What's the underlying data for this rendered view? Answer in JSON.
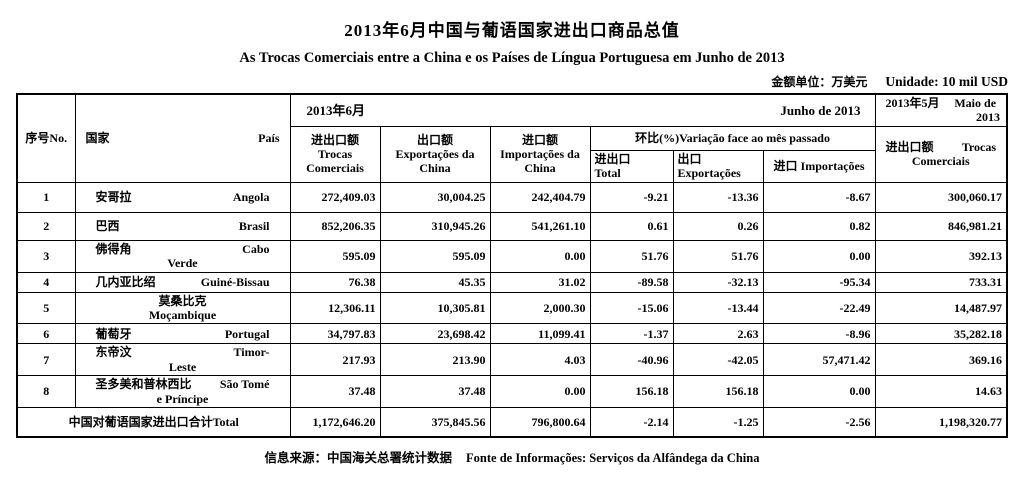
{
  "title_cn": "2013年6月中国与葡语国家进出口商品总值",
  "subtitle_pt": "As Trocas Comerciais entre a China e os Países de Língua Portuguesa em Junho de 2013",
  "unit": {
    "cn": "金额单位：万美元",
    "pt": "Unidade: 10 mil USD"
  },
  "header": {
    "no": "序号No.",
    "country_cn": "国家",
    "country_pt": "País",
    "june_cn": "2013年6月",
    "june_pt": "Junho de 2013",
    "may_cn": "2013年5月",
    "may_pt_line1": "Maio de",
    "may_pt_line2": "2013",
    "col_trocas": "进出口额 Trocas Comerciais",
    "col_exportacoes": "出口额 Exportações da China",
    "col_importacoes": "进口额 Importações da China",
    "variation_span": "环比(%)Variação face ao mês passado",
    "var_total_cn": "进出口",
    "var_total_pt": "Total",
    "var_exp_cn": "出口",
    "var_exp_pt": "Exportações",
    "var_imp_cn": "进口",
    "var_imp_pt": "Importações",
    "may_col_trocas": "进出口额 Trocas Comerciais"
  },
  "chart_data": {
    "type": "table",
    "title": "As Trocas Comerciais entre a China e os Países de Língua Portuguesa em Junho de 2013",
    "columns": [
      "No.",
      "País",
      "Trocas Comerciais 2013-06",
      "Exportações da China",
      "Importações da China",
      "Variação % Total",
      "Variação % Exportações",
      "Variação % Importações",
      "Trocas Comerciais Maio 2013"
    ],
    "rows": [
      [
        "1",
        "Angola",
        272409.03,
        30004.25,
        242404.79,
        -9.21,
        -13.36,
        -8.67,
        300060.17
      ],
      [
        "2",
        "Brasil",
        852206.35,
        310945.26,
        541261.1,
        0.61,
        0.26,
        0.82,
        846981.21
      ],
      [
        "3",
        "Cabo Verde",
        595.09,
        595.09,
        0.0,
        51.76,
        51.76,
        0.0,
        392.13
      ],
      [
        "4",
        "Guiné-Bissau",
        76.38,
        45.35,
        31.02,
        -89.58,
        -32.13,
        -95.34,
        733.31
      ],
      [
        "5",
        "Moçambique",
        12306.11,
        10305.81,
        2000.3,
        -15.06,
        -13.44,
        -22.49,
        14487.97
      ],
      [
        "6",
        "Portugal",
        34797.83,
        23698.42,
        11099.41,
        -1.37,
        2.63,
        -8.96,
        35282.18
      ],
      [
        "7",
        "Timor-Leste",
        217.93,
        213.9,
        4.03,
        -40.96,
        -42.05,
        57471.42,
        369.16
      ],
      [
        "8",
        "São Tomé e Príncipe",
        37.48,
        37.48,
        0.0,
        156.18,
        156.18,
        0.0,
        14.63
      ],
      [
        "Total",
        "中国对葡语国家进出口合计",
        1172646.2,
        375845.56,
        796800.64,
        -2.14,
        -1.25,
        -2.56,
        1198320.77
      ]
    ]
  },
  "rows": [
    {
      "no": "1",
      "cn": "安哥拉",
      "pt1": "Angola",
      "pt2": "",
      "trocas": "272,409.03",
      "exp": "30,004.25",
      "imp": "242,404.79",
      "vtot": "-9.21",
      "vexp": "-13.36",
      "vimp": "-8.67",
      "may": "300,060.17"
    },
    {
      "no": "2",
      "cn": "巴西",
      "pt1": "Brasil",
      "pt2": "",
      "trocas": "852,206.35",
      "exp": "310,945.26",
      "imp": "541,261.10",
      "vtot": "0.61",
      "vexp": "0.26",
      "vimp": "0.82",
      "may": "846,981.21"
    },
    {
      "no": "3",
      "cn": "佛得角",
      "pt1": "Cabo",
      "pt2": "Verde",
      "trocas": "595.09",
      "exp": "595.09",
      "imp": "0.00",
      "vtot": "51.76",
      "vexp": "51.76",
      "vimp": "0.00",
      "may": "392.13"
    },
    {
      "no": "4",
      "cn": "几内亚比绍",
      "pt1": "Guiné-Bissau",
      "pt2": "",
      "trocas": "76.38",
      "exp": "45.35",
      "imp": "31.02",
      "vtot": "-89.58",
      "vexp": "-32.13",
      "vimp": "-95.34",
      "may": "733.31"
    },
    {
      "no": "5",
      "cn": "莫桑比克",
      "pt1": "",
      "pt2": "Moçambique",
      "trocas": "12,306.11",
      "exp": "10,305.81",
      "imp": "2,000.30",
      "vtot": "-15.06",
      "vexp": "-13.44",
      "vimp": "-22.49",
      "may": "14,487.97"
    },
    {
      "no": "6",
      "cn": "葡萄牙",
      "pt1": "Portugal",
      "pt2": "",
      "trocas": "34,797.83",
      "exp": "23,698.42",
      "imp": "11,099.41",
      "vtot": "-1.37",
      "vexp": "2.63",
      "vimp": "-8.96",
      "may": "35,282.18"
    },
    {
      "no": "7",
      "cn": "东帝汶",
      "pt1": "Timor-",
      "pt2": "Leste",
      "trocas": "217.93",
      "exp": "213.90",
      "imp": "4.03",
      "vtot": "-40.96",
      "vexp": "-42.05",
      "vimp": "57,471.42",
      "may": "369.16"
    },
    {
      "no": "8",
      "cn": "圣多美和普林西比",
      "pt1": "São Tomé",
      "pt2": "e Príncipe",
      "trocas": "37.48",
      "exp": "37.48",
      "imp": "0.00",
      "vtot": "156.18",
      "vexp": "156.18",
      "vimp": "0.00",
      "may": "14.63"
    }
  ],
  "total": {
    "label": "中国对葡语国家进出口合计Total",
    "trocas": "1,172,646.20",
    "exp": "375,845.56",
    "imp": "796,800.64",
    "vtot": "-2.14",
    "vexp": "-1.25",
    "vimp": "-2.56",
    "may": "1,198,320.77"
  },
  "footer": {
    "cn": "信息来源：中国海关总署统计数据",
    "pt": "Fonte de Informações: Serviços da Alfândega da China"
  }
}
